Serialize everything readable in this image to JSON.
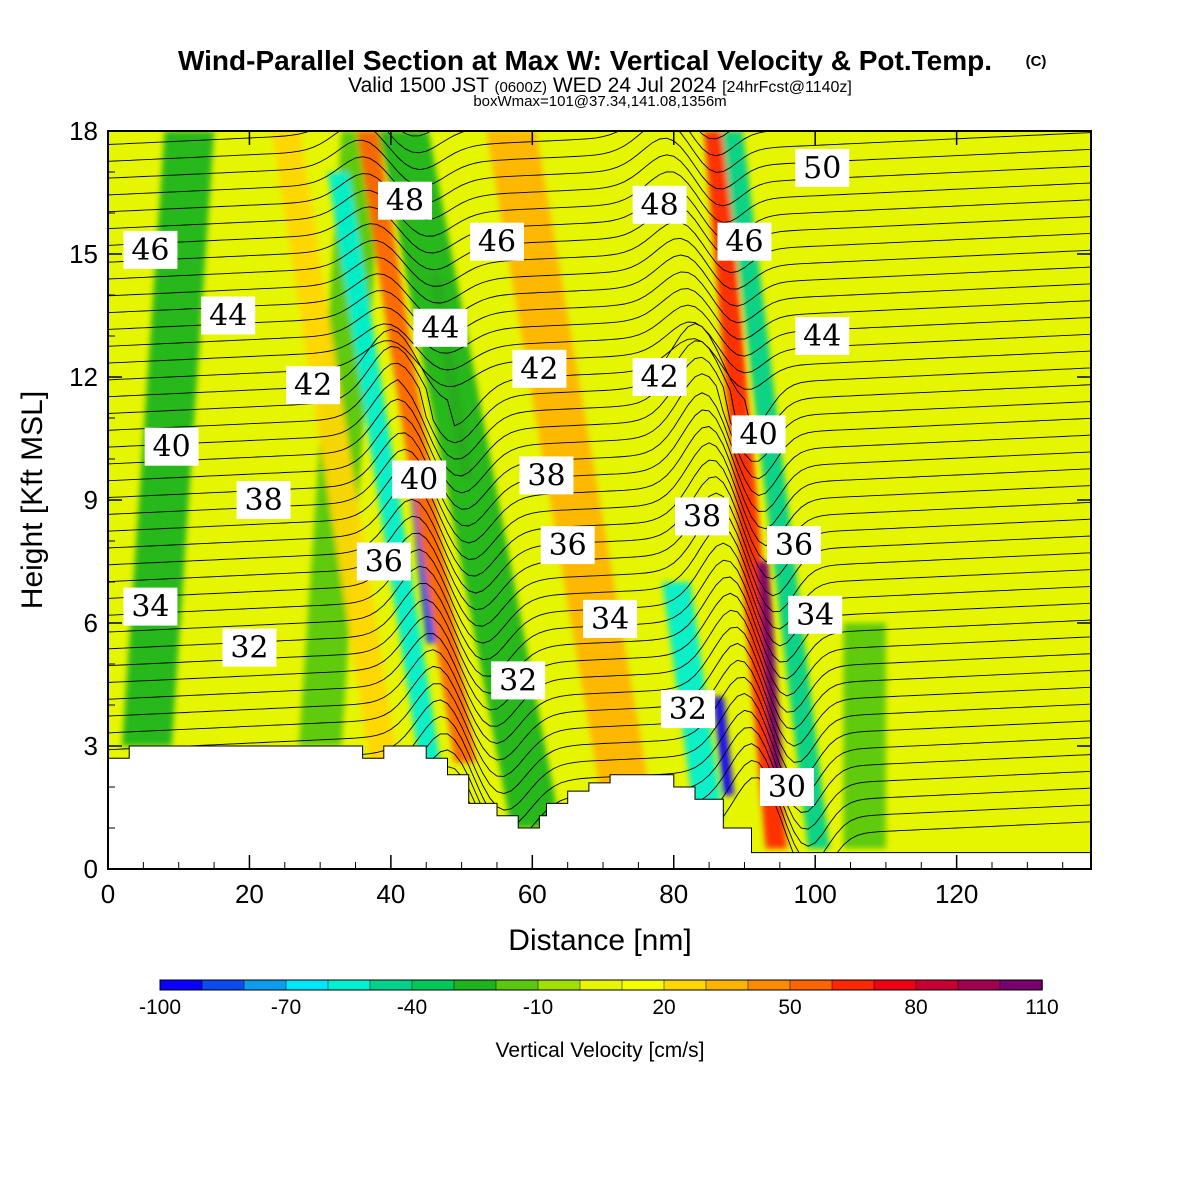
{
  "header": {
    "title": "Wind-Parallel Section at Max W: Vertical Velocity & Pot.Temp.",
    "copyright": "(C)",
    "valid_main": "Valid 1500 JST",
    "valid_utc": "(0600Z)",
    "valid_date": "WED 24 Jul 2024",
    "forecast": "[24hrFcst@1140z]",
    "box_info": "boxWmax=101@37.34,141.08,1356m"
  },
  "chart_data": {
    "type": "heatmap",
    "description_fields": "cross-section of vertical velocity (color fill) with potential temperature contours",
    "xlabel": "Distance [nm]",
    "ylabel": "Height [Kft MSL]",
    "xlim": [
      0,
      139
    ],
    "ylim": [
      0,
      18
    ],
    "x_ticks": [
      "0",
      "20",
      "40",
      "60",
      "80",
      "100",
      "120"
    ],
    "x_tick_values": [
      0,
      20,
      40,
      60,
      80,
      100,
      120
    ],
    "y_ticks": [
      "0",
      "3",
      "6",
      "9",
      "12",
      "15",
      "18"
    ],
    "y_tick_values": [
      0,
      3,
      6,
      9,
      12,
      15,
      18
    ],
    "colorbar": {
      "label": "Vertical Velocity [cm/s]",
      "tick_labels": [
        "-100",
        "-70",
        "-40",
        "-10",
        "20",
        "50",
        "80",
        "110"
      ],
      "levels": [
        -100,
        -90,
        -80,
        -70,
        -60,
        -50,
        -40,
        -30,
        -20,
        -10,
        0,
        10,
        20,
        30,
        40,
        50,
        60,
        70,
        80,
        90,
        100,
        110
      ],
      "colors": [
        "#0a00ff",
        "#0a4cf0",
        "#0d9cf0",
        "#00e6ff",
        "#00f0d2",
        "#00d28c",
        "#00c85a",
        "#1eb41e",
        "#5ac80f",
        "#a0e100",
        "#e6f500",
        "#f5ff00",
        "#ffd700",
        "#ffb400",
        "#ff8c00",
        "#ff6400",
        "#ff2800",
        "#f00014",
        "#c80032",
        "#a00050",
        "#78006e",
        "#50008c"
      ]
    },
    "velocity_bands": [
      {
        "x": 2,
        "w": 7,
        "tilt": 0.4,
        "y0": 3.0,
        "y1": 18,
        "value": -25
      },
      {
        "x": 15,
        "w": 9,
        "tilt": 0.3,
        "y0": 3.0,
        "y1": 18,
        "value": 5
      },
      {
        "x": 27,
        "w": 6,
        "tilt": 0.4,
        "y0": 3.0,
        "y1": 18,
        "value": -20
      },
      {
        "x": 37,
        "w": 4,
        "tilt": -0.9,
        "y0": 2.6,
        "y1": 18,
        "value": 25
      },
      {
        "x": 44,
        "w": 3,
        "tilt": -0.9,
        "y0": 2.6,
        "y1": 17,
        "value": -55
      },
      {
        "x": 45,
        "w": 1.6,
        "tilt": -0.6,
        "y0": 5.5,
        "y1": 9.5,
        "value": -85
      },
      {
        "x": 49,
        "w": 3,
        "tilt": -0.9,
        "y0": 2.6,
        "y1": 18,
        "value": 55
      },
      {
        "x": 50,
        "w": 1.6,
        "tilt": -0.9,
        "y0": 9.5,
        "y1": 14.5,
        "value": 75
      },
      {
        "x": 57,
        "w": 7,
        "tilt": -1.1,
        "y0": 1.0,
        "y1": 18,
        "value": -25
      },
      {
        "x": 70,
        "w": 7,
        "tilt": -1.0,
        "y0": 1.5,
        "y1": 18,
        "value": 30
      },
      {
        "x": 83,
        "w": 4,
        "tilt": -0.8,
        "y0": 1.2,
        "y1": 7,
        "value": -55
      },
      {
        "x": 87,
        "w": 1.5,
        "tilt": -0.6,
        "y0": 1.8,
        "y1": 4.2,
        "value": -95
      },
      {
        "x": 93,
        "w": 3,
        "tilt": -0.5,
        "y0": 0.5,
        "y1": 18,
        "value": 60
      },
      {
        "x": 94,
        "w": 1.6,
        "tilt": -0.4,
        "y0": 2.0,
        "y1": 7.5,
        "value": 100
      },
      {
        "x": 99,
        "w": 3,
        "tilt": -0.7,
        "y0": 0.5,
        "y1": 18,
        "value": -45
      },
      {
        "x": 104,
        "w": 6,
        "tilt": 0.0,
        "y0": 0.5,
        "y1": 6,
        "value": -20
      }
    ],
    "theta_contours": [
      {
        "theta": 30,
        "label": "30",
        "label_x": 96,
        "label_y": 2.0
      },
      {
        "theta": 32,
        "label": "32",
        "label_x": 20,
        "label_y": 5.4
      },
      {
        "theta": 32,
        "label": "32",
        "label_x": 58,
        "label_y": 4.6
      },
      {
        "theta": 32,
        "label": "32",
        "label_x": 82,
        "label_y": 3.9
      },
      {
        "theta": 34,
        "label": "34",
        "label_x": 6,
        "label_y": 6.4
      },
      {
        "theta": 34,
        "label": "34",
        "label_x": 71,
        "label_y": 6.1
      },
      {
        "theta": 34,
        "label": "34",
        "label_x": 100,
        "label_y": 6.2
      },
      {
        "theta": 36,
        "label": "36",
        "label_x": 39,
        "label_y": 7.5
      },
      {
        "theta": 36,
        "label": "36",
        "label_x": 65,
        "label_y": 7.9
      },
      {
        "theta": 36,
        "label": "36",
        "label_x": 97,
        "label_y": 7.9
      },
      {
        "theta": 38,
        "label": "38",
        "label_x": 22,
        "label_y": 9.0
      },
      {
        "theta": 38,
        "label": "38",
        "label_x": 62,
        "label_y": 9.6
      },
      {
        "theta": 38,
        "label": "38",
        "label_x": 84,
        "label_y": 8.6
      },
      {
        "theta": 40,
        "label": "40",
        "label_x": 9,
        "label_y": 10.3
      },
      {
        "theta": 40,
        "label": "40",
        "label_x": 44,
        "label_y": 9.5
      },
      {
        "theta": 40,
        "label": "40",
        "label_x": 92,
        "label_y": 10.6
      },
      {
        "theta": 42,
        "label": "42",
        "label_x": 29,
        "label_y": 11.8
      },
      {
        "theta": 42,
        "label": "42",
        "label_x": 61,
        "label_y": 12.2
      },
      {
        "theta": 42,
        "label": "42",
        "label_x": 78,
        "label_y": 12.0
      },
      {
        "theta": 44,
        "label": "44",
        "label_x": 17,
        "label_y": 13.5
      },
      {
        "theta": 44,
        "label": "44",
        "label_x": 47,
        "label_y": 13.2
      },
      {
        "theta": 44,
        "label": "44",
        "label_x": 101,
        "label_y": 13.0
      },
      {
        "theta": 46,
        "label": "46",
        "label_x": 6,
        "label_y": 15.1
      },
      {
        "theta": 46,
        "label": "46",
        "label_x": 55,
        "label_y": 15.3
      },
      {
        "theta": 46,
        "label": "46",
        "label_x": 90,
        "label_y": 15.3
      },
      {
        "theta": 48,
        "label": "48",
        "label_x": 42,
        "label_y": 16.3
      },
      {
        "theta": 48,
        "label": "48",
        "label_x": 78,
        "label_y": 16.2
      },
      {
        "theta": 50,
        "label": "50",
        "label_x": 101,
        "label_y": 17.1
      }
    ],
    "terrain_kft": [
      [
        0,
        2.7
      ],
      [
        3,
        2.7
      ],
      [
        3,
        3.0
      ],
      [
        36,
        3.0
      ],
      [
        36,
        2.7
      ],
      [
        39,
        2.7
      ],
      [
        39,
        3.0
      ],
      [
        45,
        3.0
      ],
      [
        45,
        2.7
      ],
      [
        48,
        2.7
      ],
      [
        48,
        2.3
      ],
      [
        51,
        2.3
      ],
      [
        51,
        1.6
      ],
      [
        55,
        1.6
      ],
      [
        55,
        1.3
      ],
      [
        58,
        1.3
      ],
      [
        58,
        1.0
      ],
      [
        61,
        1.0
      ],
      [
        61,
        1.3
      ],
      [
        62,
        1.3
      ],
      [
        62,
        1.6
      ],
      [
        65,
        1.6
      ],
      [
        65,
        1.9
      ],
      [
        68,
        1.9
      ],
      [
        68,
        2.1
      ],
      [
        71,
        2.1
      ],
      [
        71,
        2.3
      ],
      [
        80,
        2.3
      ],
      [
        80,
        2.0
      ],
      [
        83,
        2.0
      ],
      [
        83,
        1.7
      ],
      [
        87,
        1.7
      ],
      [
        87,
        1.0
      ],
      [
        91,
        1.0
      ],
      [
        91,
        0.4
      ],
      [
        139,
        0.4
      ]
    ]
  }
}
